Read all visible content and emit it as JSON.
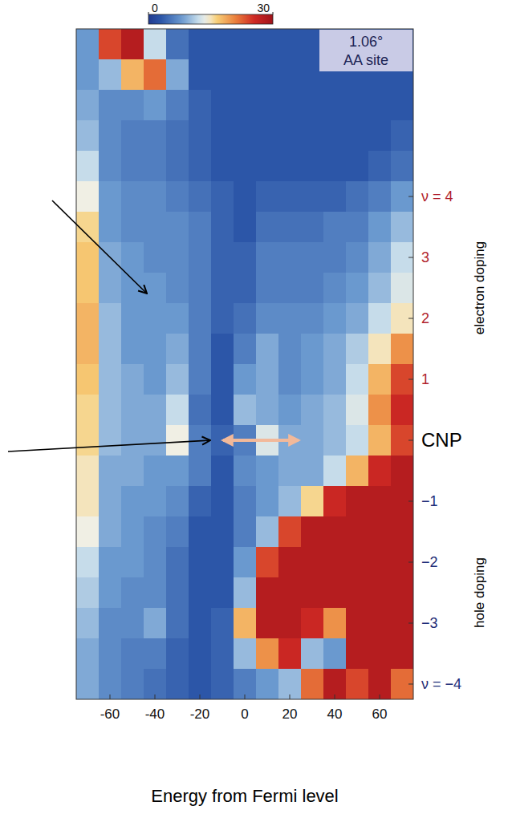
{
  "chart_data": {
    "type": "heatmap",
    "x": [
      -70,
      -60,
      -50,
      -40,
      -30,
      -20,
      -10,
      0,
      10,
      20,
      30,
      40,
      50,
      60,
      70
    ],
    "y": [
      6.5,
      6,
      5.5,
      5,
      4.5,
      4,
      3.5,
      3,
      2.5,
      2,
      1.5,
      1,
      0.5,
      0,
      -0.5,
      -1,
      -1.5,
      -2,
      -2.5,
      -3,
      -3.5,
      -4
    ],
    "values": [
      [
        8,
        24,
        28,
        12,
        5,
        3,
        3,
        3,
        3,
        3,
        3,
        3,
        3,
        3,
        3
      ],
      [
        8,
        10,
        18,
        22,
        9,
        3,
        3,
        3,
        3,
        3,
        3,
        3,
        3,
        3,
        3
      ],
      [
        9,
        7,
        7,
        8,
        6,
        4,
        3,
        3,
        3,
        3,
        3,
        3,
        3,
        3,
        3
      ],
      [
        10,
        7,
        6,
        6,
        5,
        4,
        3,
        3,
        3,
        3,
        3,
        3,
        3,
        3,
        4
      ],
      [
        12,
        7,
        6,
        6,
        5,
        4,
        3,
        3,
        3,
        3,
        3,
        3,
        3,
        4,
        5
      ],
      [
        14,
        8,
        7,
        7,
        6,
        5,
        4,
        3,
        4,
        4,
        4,
        4,
        5,
        6,
        8
      ],
      [
        16,
        8,
        7,
        7,
        7,
        6,
        4,
        3,
        5,
        5,
        5,
        6,
        6,
        8,
        10
      ],
      [
        17,
        9,
        8,
        7,
        7,
        6,
        4,
        4,
        6,
        6,
        6,
        6,
        7,
        9,
        12
      ],
      [
        17,
        9,
        8,
        8,
        7,
        6,
        4,
        4,
        6,
        6,
        6,
        7,
        8,
        10,
        13
      ],
      [
        18,
        10,
        8,
        8,
        8,
        6,
        4,
        5,
        7,
        7,
        7,
        8,
        9,
        12,
        15
      ],
      [
        18,
        10,
        8,
        8,
        9,
        6,
        3,
        6,
        9,
        7,
        8,
        9,
        11,
        15,
        20
      ],
      [
        17,
        10,
        9,
        8,
        10,
        6,
        3,
        8,
        9,
        7,
        8,
        9,
        12,
        18,
        24
      ],
      [
        16,
        10,
        9,
        9,
        12,
        5,
        3,
        10,
        9,
        8,
        9,
        10,
        13,
        20,
        26
      ],
      [
        16,
        10,
        9,
        9,
        14,
        6,
        4,
        6,
        13,
        9,
        9,
        10,
        12,
        18,
        24
      ],
      [
        15,
        9,
        9,
        8,
        8,
        6,
        3,
        7,
        8,
        9,
        9,
        12,
        18,
        26,
        28
      ],
      [
        15,
        9,
        8,
        8,
        7,
        4,
        3,
        6,
        8,
        10,
        16,
        26,
        28,
        28,
        28
      ],
      [
        14,
        9,
        8,
        7,
        6,
        3,
        3,
        6,
        10,
        24,
        28,
        28,
        28,
        28,
        28
      ],
      [
        12,
        8,
        8,
        7,
        5,
        3,
        3,
        8,
        24,
        28,
        28,
        28,
        28,
        28,
        28
      ],
      [
        11,
        8,
        7,
        7,
        5,
        3,
        3,
        10,
        28,
        28,
        28,
        28,
        28,
        28,
        28
      ],
      [
        10,
        7,
        7,
        9,
        5,
        3,
        4,
        18,
        28,
        28,
        26,
        20,
        28,
        28,
        28
      ],
      [
        9,
        7,
        6,
        6,
        4,
        3,
        4,
        10,
        20,
        26,
        10,
        8,
        28,
        28,
        28
      ],
      [
        9,
        7,
        6,
        5,
        4,
        3,
        4,
        6,
        8,
        10,
        22,
        28,
        24,
        28,
        22
      ]
    ],
    "xlim": [
      -75,
      75
    ],
    "ylim": [
      -4.25,
      6.75
    ],
    "xticks": [
      -60,
      -40,
      -20,
      0,
      20,
      40,
      60
    ],
    "yticks": [
      {
        "value": 4,
        "label": "ν = 4"
      },
      3,
      2,
      1,
      {
        "value": 0,
        "label": "CNP"
      },
      {
        "value": -1,
        "label": "−1"
      },
      {
        "value": -2,
        "label": "−2"
      },
      {
        "value": -3,
        "label": "−3"
      },
      {
        "value": -4,
        "label": "ν = −4"
      }
    ],
    "x_label": "Energy from Fermi level",
    "colorbar": {
      "range": [
        0,
        30
      ],
      "ticks": [
        0,
        30
      ]
    },
    "inset": [
      "1.06°",
      "AA site"
    ],
    "y_annotations": [
      {
        "text": "electron doping",
        "from": 1,
        "to": 4
      },
      {
        "text": "hole doping",
        "from": -1,
        "to": -4
      }
    ]
  }
}
